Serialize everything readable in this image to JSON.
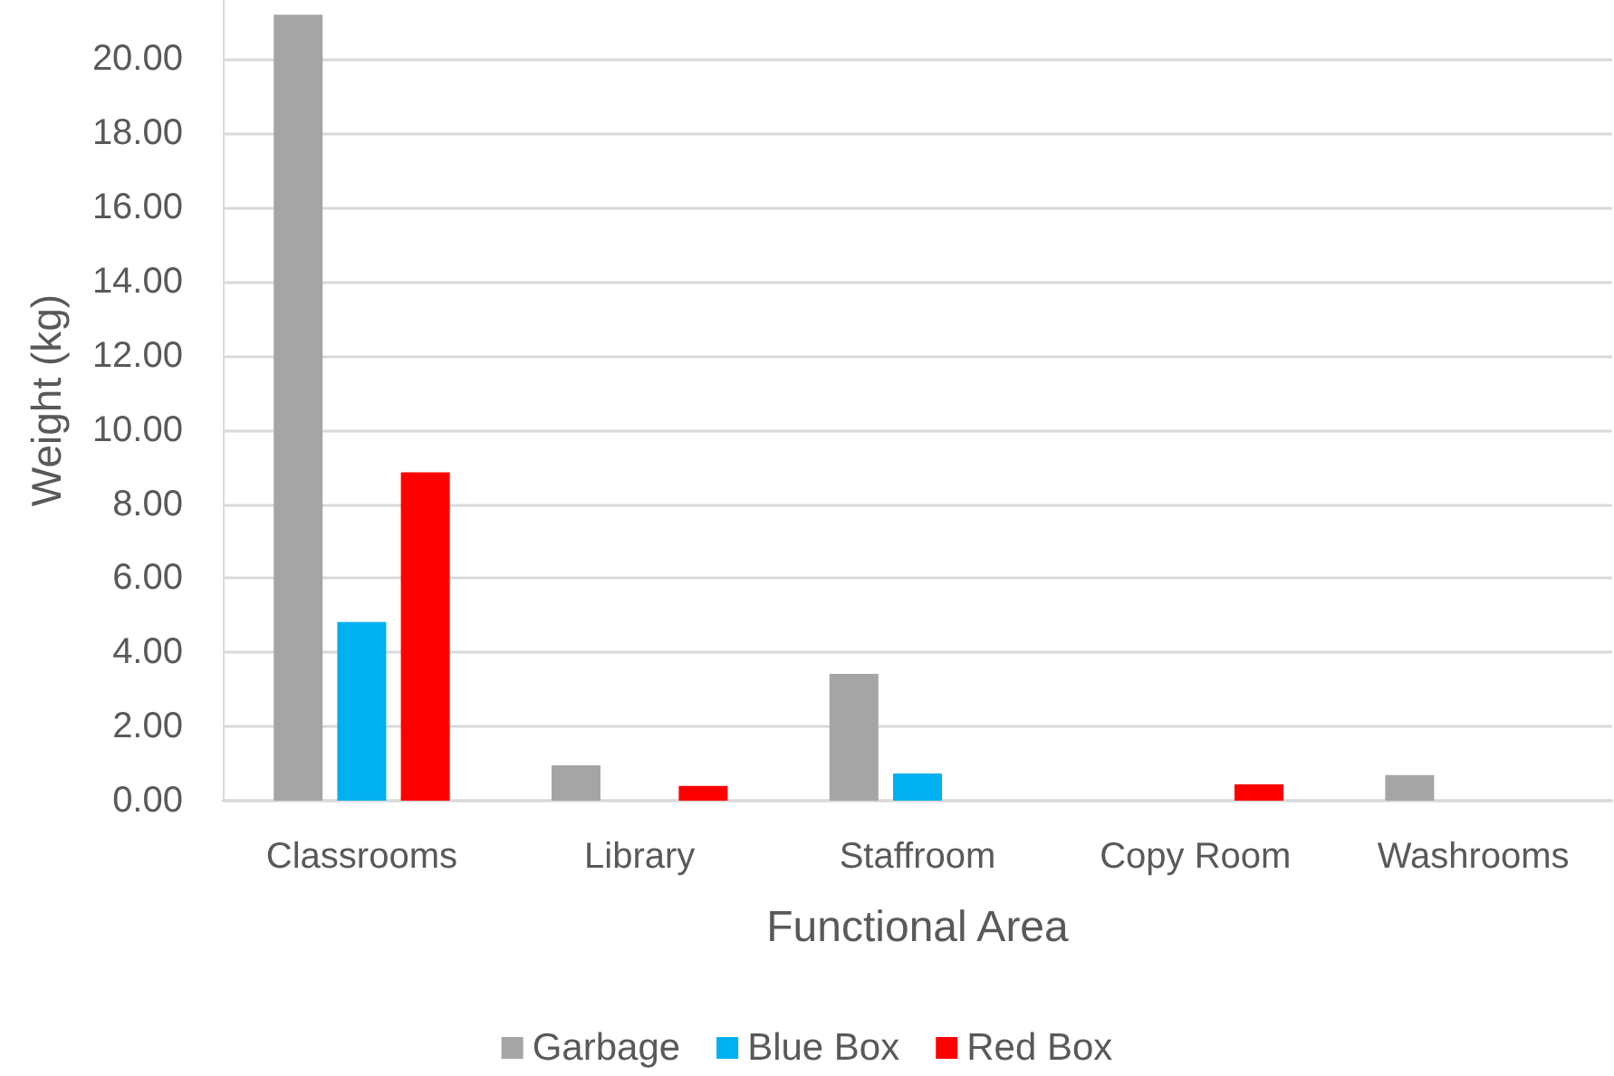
{
  "chart_data": {
    "type": "bar",
    "xlabel": "Functional Area",
    "ylabel": "Weight (kg)",
    "categories": [
      "Classrooms",
      "Library",
      "Staffroom",
      "Copy Room",
      "Washrooms"
    ],
    "series": [
      {
        "name": "Garbage",
        "color": "#a5a5a5",
        "values": [
          21.2,
          0.95,
          3.42,
          null,
          0.69
        ]
      },
      {
        "name": "Blue Box",
        "color": "#00b0f0",
        "values": [
          4.82,
          null,
          0.73,
          null,
          null
        ]
      },
      {
        "name": "Red Box",
        "color": "#ff0000",
        "values": [
          8.86,
          0.4,
          null,
          0.44,
          null
        ]
      }
    ],
    "ylim": [
      0,
      21.6
    ],
    "yticks": [
      {
        "value": 0,
        "label": "0.00"
      },
      {
        "value": 2,
        "label": "2.00"
      },
      {
        "value": 4,
        "label": "4.00"
      },
      {
        "value": 6,
        "label": "6.00"
      },
      {
        "value": 8,
        "label": "8.00"
      },
      {
        "value": 10,
        "label": "10.00"
      },
      {
        "value": 12,
        "label": "12.00"
      },
      {
        "value": 14,
        "label": "14.00"
      },
      {
        "value": 16,
        "label": "16.00"
      },
      {
        "value": 18,
        "label": "18.00"
      },
      {
        "value": 20,
        "label": "20.00"
      }
    ],
    "grid": "y",
    "legend": "bottom"
  }
}
